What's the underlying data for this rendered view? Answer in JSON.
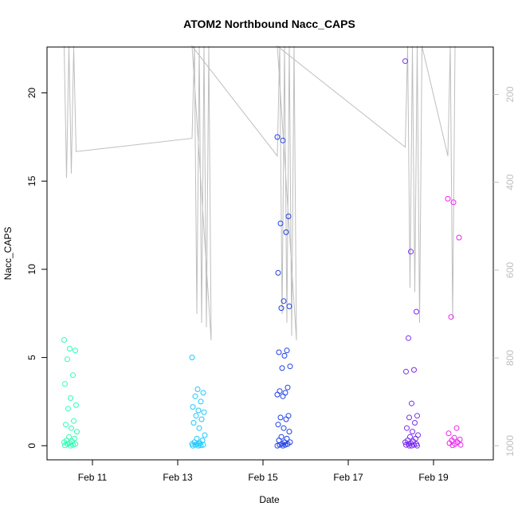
{
  "chart_data": {
    "type": "scatter",
    "title": "ATOM2 Northbound Nacc_CAPS",
    "xlabel": "Date",
    "ylabel": "Nacc_CAPS",
    "x_ticks": [
      "Feb 11",
      "Feb 13",
      "Feb 15",
      "Feb 17",
      "Feb 19"
    ],
    "y_ticks": [
      "0",
      "5",
      "10",
      "15",
      "20"
    ],
    "ylim": [
      -0.8,
      22.6
    ],
    "secondary_axis": {
      "position": "right",
      "reversed": true,
      "ticks": [
        "200",
        "400",
        "600",
        "800",
        "1000"
      ],
      "ylim": [
        92,
        1032
      ],
      "color": "#bebebe",
      "series_type": "line"
    },
    "colors": {
      "line": "#bebebe",
      "groups": [
        "#00ffbf",
        "#00bfff",
        "#0040ff",
        "#8000ff",
        "#ff00ff"
      ]
    },
    "series": [
      {
        "color": "#2bffb4",
        "points": [
          [
            "2025-02-10",
            6.0
          ],
          [
            "2025-02-10",
            5.5
          ],
          [
            "2025-02-10",
            5.4
          ],
          [
            "2025-02-10",
            4.9
          ],
          [
            "2025-02-10",
            4.0
          ],
          [
            "2025-02-10",
            3.5
          ],
          [
            "2025-02-10",
            2.7
          ],
          [
            "2025-02-10",
            2.3
          ],
          [
            "2025-02-10",
            2.1
          ],
          [
            "2025-02-10",
            1.4
          ],
          [
            "2025-02-10",
            1.2
          ],
          [
            "2025-02-10",
            1.0
          ],
          [
            "2025-02-10",
            0.8
          ],
          [
            "2025-02-10",
            0.5
          ],
          [
            "2025-02-10",
            0.4
          ],
          [
            "2025-02-10",
            0.3
          ],
          [
            "2025-02-10",
            0.25
          ],
          [
            "2025-02-10",
            0.2
          ],
          [
            "2025-02-10",
            0.15
          ],
          [
            "2025-02-10",
            0.1
          ],
          [
            "2025-02-10",
            0.1
          ],
          [
            "2025-02-10",
            0.05
          ],
          [
            "2025-02-10",
            0.02
          ],
          [
            "2025-02-10",
            0.0
          ]
        ]
      },
      {
        "color": "#1ec8ff",
        "points": [
          [
            "2025-02-13",
            5.0
          ],
          [
            "2025-02-13",
            3.2
          ],
          [
            "2025-02-13",
            3.0
          ],
          [
            "2025-02-13",
            2.8
          ],
          [
            "2025-02-13",
            2.5
          ],
          [
            "2025-02-13",
            2.2
          ],
          [
            "2025-02-13",
            2.0
          ],
          [
            "2025-02-13",
            1.9
          ],
          [
            "2025-02-13",
            1.7
          ],
          [
            "2025-02-13",
            1.5
          ],
          [
            "2025-02-13",
            1.3
          ],
          [
            "2025-02-13",
            1.0
          ],
          [
            "2025-02-13",
            0.6
          ],
          [
            "2025-02-13",
            0.4
          ],
          [
            "2025-02-13",
            0.3
          ],
          [
            "2025-02-13",
            0.2
          ],
          [
            "2025-02-13",
            0.15
          ],
          [
            "2025-02-13",
            0.1
          ],
          [
            "2025-02-13",
            0.1
          ],
          [
            "2025-02-13",
            0.05
          ],
          [
            "2025-02-13",
            0.05
          ],
          [
            "2025-02-13",
            0.02
          ],
          [
            "2025-02-13",
            0.0
          ],
          [
            "2025-02-13",
            0.0
          ]
        ]
      },
      {
        "color": "#2041e6",
        "points": [
          [
            "2025-02-15",
            17.5
          ],
          [
            "2025-02-15",
            17.3
          ],
          [
            "2025-02-15",
            13.0
          ],
          [
            "2025-02-15",
            12.6
          ],
          [
            "2025-02-15",
            12.1
          ],
          [
            "2025-02-15",
            9.8
          ],
          [
            "2025-02-15",
            8.2
          ],
          [
            "2025-02-15",
            7.9
          ],
          [
            "2025-02-15",
            7.8
          ],
          [
            "2025-02-15",
            5.4
          ],
          [
            "2025-02-15",
            5.3
          ],
          [
            "2025-02-15",
            5.1
          ],
          [
            "2025-02-15",
            4.5
          ],
          [
            "2025-02-15",
            4.4
          ],
          [
            "2025-02-15",
            3.3
          ],
          [
            "2025-02-15",
            3.1
          ],
          [
            "2025-02-15",
            3.0
          ],
          [
            "2025-02-15",
            2.9
          ],
          [
            "2025-02-15",
            2.8
          ],
          [
            "2025-02-15",
            1.7
          ],
          [
            "2025-02-15",
            1.6
          ],
          [
            "2025-02-15",
            1.5
          ],
          [
            "2025-02-15",
            1.2
          ],
          [
            "2025-02-15",
            1.0
          ],
          [
            "2025-02-15",
            0.8
          ],
          [
            "2025-02-15",
            0.5
          ],
          [
            "2025-02-15",
            0.4
          ],
          [
            "2025-02-15",
            0.3
          ],
          [
            "2025-02-15",
            0.2
          ],
          [
            "2025-02-15",
            0.2
          ],
          [
            "2025-02-15",
            0.1
          ],
          [
            "2025-02-15",
            0.1
          ],
          [
            "2025-02-15",
            0.05
          ],
          [
            "2025-02-15",
            0.05
          ],
          [
            "2025-02-15",
            0.0
          ],
          [
            "2025-02-15",
            0.0
          ]
        ]
      },
      {
        "color": "#7a2cf0",
        "points": [
          [
            "2025-02-18",
            21.8
          ],
          [
            "2025-02-18",
            11.0
          ],
          [
            "2025-02-18",
            7.6
          ],
          [
            "2025-02-18",
            6.1
          ],
          [
            "2025-02-18",
            4.3
          ],
          [
            "2025-02-18",
            4.2
          ],
          [
            "2025-02-18",
            2.4
          ],
          [
            "2025-02-18",
            1.7
          ],
          [
            "2025-02-18",
            1.6
          ],
          [
            "2025-02-18",
            1.3
          ],
          [
            "2025-02-18",
            1.0
          ],
          [
            "2025-02-18",
            0.8
          ],
          [
            "2025-02-18",
            0.6
          ],
          [
            "2025-02-18",
            0.5
          ],
          [
            "2025-02-18",
            0.4
          ],
          [
            "2025-02-18",
            0.3
          ],
          [
            "2025-02-18",
            0.25
          ],
          [
            "2025-02-18",
            0.2
          ],
          [
            "2025-02-18",
            0.15
          ],
          [
            "2025-02-18",
            0.1
          ],
          [
            "2025-02-18",
            0.1
          ],
          [
            "2025-02-18",
            0.05
          ],
          [
            "2025-02-18",
            0.05
          ],
          [
            "2025-02-18",
            0.0
          ],
          [
            "2025-02-18",
            0.0
          ],
          [
            "2025-02-18",
            0.0
          ]
        ]
      },
      {
        "color": "#ee22ee",
        "points": [
          [
            "2025-02-19",
            14.0
          ],
          [
            "2025-02-19",
            13.8
          ],
          [
            "2025-02-19",
            11.8
          ],
          [
            "2025-02-19",
            7.3
          ],
          [
            "2025-02-19",
            1.0
          ],
          [
            "2025-02-19",
            0.7
          ],
          [
            "2025-02-19",
            0.45
          ],
          [
            "2025-02-19",
            0.35
          ],
          [
            "2025-02-19",
            0.3
          ],
          [
            "2025-02-19",
            0.2
          ],
          [
            "2025-02-19",
            0.15
          ],
          [
            "2025-02-19",
            0.1
          ],
          [
            "2025-02-19",
            0.05
          ],
          [
            "2025-02-19",
            0.02
          ]
        ]
      }
    ],
    "line_series": [
      [
        "2025-02-10",
        90
      ],
      [
        "2025-02-10",
        390
      ],
      [
        "2025-02-10",
        90
      ],
      [
        "2025-02-10",
        380
      ],
      [
        "2025-02-10",
        90
      ],
      [
        "2025-02-10",
        330
      ],
      [
        "2025-02-13",
        300
      ],
      [
        "2025-02-13",
        90
      ],
      [
        "2025-02-13",
        700
      ],
      [
        "2025-02-13",
        90
      ],
      [
        "2025-02-13",
        720
      ],
      [
        "2025-02-13",
        90
      ],
      [
        "2025-02-13",
        730
      ],
      [
        "2025-02-13",
        90
      ],
      [
        "2025-02-13",
        760
      ],
      [
        "2025-02-13",
        90
      ],
      [
        "2025-02-15",
        340
      ],
      [
        "2025-02-15",
        90
      ],
      [
        "2025-02-15",
        700
      ],
      [
        "2025-02-15",
        90
      ],
      [
        "2025-02-15",
        720
      ],
      [
        "2025-02-15",
        90
      ],
      [
        "2025-02-15",
        750
      ],
      [
        "2025-02-15",
        90
      ],
      [
        "2025-02-15",
        760
      ],
      [
        "2025-02-15",
        90
      ],
      [
        "2025-02-18",
        320
      ],
      [
        "2025-02-18",
        90
      ],
      [
        "2025-02-18",
        640
      ],
      [
        "2025-02-18",
        90
      ],
      [
        "2025-02-18",
        650
      ],
      [
        "2025-02-18",
        90
      ],
      [
        "2025-02-18",
        720
      ],
      [
        "2025-02-18",
        90
      ],
      [
        "2025-02-19",
        340
      ],
      [
        "2025-02-19",
        90
      ],
      [
        "2025-02-19",
        710
      ],
      [
        "2025-02-19",
        90
      ]
    ]
  }
}
